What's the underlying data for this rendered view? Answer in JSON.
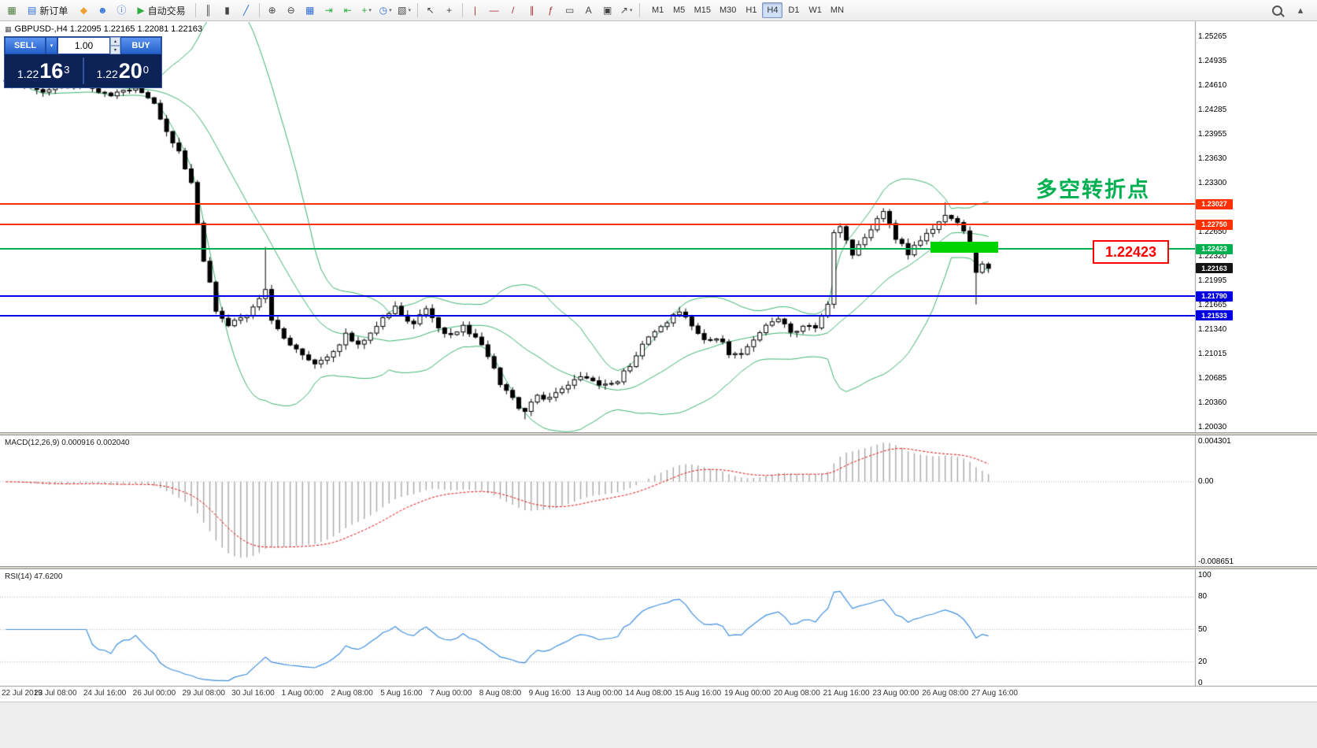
{
  "toolbar": {
    "caret_glyph": "▾",
    "items": [
      {
        "type": "icon",
        "name": "new-chart-button",
        "glyph": "▦",
        "color": "#4a7a3a"
      },
      {
        "type": "text",
        "name": "new-order-button",
        "label": "新订单",
        "glyph": "▤",
        "color": "#2b6cd9"
      },
      {
        "type": "icon",
        "name": "favorites-button",
        "glyph": "◆",
        "color": "#f0a030"
      },
      {
        "type": "icon",
        "name": "profile-button",
        "glyph": "☻",
        "color": "#3a78d8"
      },
      {
        "type": "icon",
        "name": "community-info-button",
        "glyph": "ⓘ",
        "color": "#3a78d8"
      },
      {
        "type": "text",
        "name": "autotrading-button",
        "label": "自动交易",
        "glyph": "▶",
        "color": "#2eae3e"
      },
      {
        "type": "sep"
      },
      {
        "type": "icon",
        "name": "bar-chart-button",
        "glyph": "║",
        "color": "#444"
      },
      {
        "type": "icon",
        "name": "candlestick-chart-button",
        "glyph": "▮",
        "color": "#444"
      },
      {
        "type": "icon",
        "name": "line-chart-button",
        "glyph": "╱",
        "color": "#2b6cd9"
      },
      {
        "type": "sep"
      },
      {
        "type": "icon",
        "name": "zoom-in-button",
        "glyph": "⊕",
        "color": "#444"
      },
      {
        "type": "icon",
        "name": "zoom-out-button",
        "glyph": "⊖",
        "color": "#444"
      },
      {
        "type": "icon",
        "name": "tile-windows-button",
        "glyph": "▦",
        "color": "#2b6cd9"
      },
      {
        "type": "icon",
        "name": "auto-scroll-button",
        "glyph": "⇥",
        "color": "#2eae3e"
      },
      {
        "type": "icon",
        "name": "chart-shift-button",
        "glyph": "⇤",
        "color": "#2eae3e"
      },
      {
        "type": "icon",
        "name": "indicators-button",
        "glyph": "+",
        "color": "#2eae3e",
        "dropdown": true
      },
      {
        "type": "icon",
        "name": "periods-button",
        "glyph": "◷",
        "color": "#2b6cd9",
        "dropdown": true
      },
      {
        "type": "icon",
        "name": "templates-button",
        "glyph": "▧",
        "color": "#444",
        "dropdown": true
      },
      {
        "type": "sep"
      },
      {
        "type": "icon",
        "name": "cursor-button",
        "glyph": "↖",
        "color": "#444"
      },
      {
        "type": "icon",
        "name": "crosshair-button",
        "glyph": "+",
        "color": "#444"
      },
      {
        "type": "sep"
      },
      {
        "type": "icon",
        "name": "vertical-line-button",
        "glyph": "|",
        "color": "#b03030"
      },
      {
        "type": "icon",
        "name": "horizontal-line-button",
        "glyph": "—",
        "color": "#b03030"
      },
      {
        "type": "icon",
        "name": "trendline-button",
        "glyph": "/",
        "color": "#b03030"
      },
      {
        "type": "icon",
        "name": "channel-button",
        "glyph": "∥",
        "color": "#b03030"
      },
      {
        "type": "icon",
        "name": "fibonacci-button",
        "glyph": "ƒ",
        "color": "#b03030"
      },
      {
        "type": "icon",
        "name": "shapes-button",
        "glyph": "▭",
        "color": "#444"
      },
      {
        "type": "icon",
        "name": "text-button",
        "glyph": "A",
        "color": "#444"
      },
      {
        "type": "icon",
        "name": "label-button",
        "glyph": "▣",
        "color": "#444"
      },
      {
        "type": "icon",
        "name": "arrows-button",
        "glyph": "↗",
        "color": "#444",
        "dropdown": true
      },
      {
        "type": "sep"
      }
    ],
    "timeframes": [
      "M1",
      "M5",
      "M15",
      "M30",
      "H1",
      "H4",
      "D1",
      "W1",
      "MN"
    ],
    "active_timeframe": "H4",
    "right_items": [
      {
        "type": "lens",
        "name": "search-button"
      },
      {
        "type": "icon",
        "name": "collapse-toolbar-button",
        "glyph": "▴",
        "color": "#555"
      }
    ]
  },
  "symbol_header": {
    "icon": "▦",
    "text": "GBPUSD-,H4  1.22095 1.22165 1.22081 1.22163"
  },
  "trade_panel": {
    "sell_label": "SELL",
    "buy_label": "BUY",
    "volume": "1.00",
    "caret": "▾",
    "spin_up": "▴",
    "spin_down": "▾",
    "sell_price": {
      "head": "1.22",
      "main": "16",
      "sup": "3"
    },
    "buy_price": {
      "head": "1.22",
      "main": "20",
      "sup": "0"
    }
  },
  "annotations": {
    "turning_point": "多空转折点",
    "price_callout": "1.22423"
  },
  "price_axis": {
    "labels": [
      "1.25265",
      "1.24935",
      "1.24610",
      "1.24285",
      "1.23955",
      "1.23630",
      "1.23300",
      "1.22975",
      "1.22650",
      "1.22320",
      "1.21995",
      "1.21665",
      "1.21340",
      "1.21015",
      "1.20685",
      "1.20360",
      "1.20030"
    ],
    "tags": [
      {
        "text": "1.23027",
        "bg": "#ff3000"
      },
      {
        "text": "1.22750",
        "bg": "#ff3000"
      },
      {
        "text": "1.22423",
        "bg": "#00b050"
      },
      {
        "text": "1.22163",
        "bg": "#141414"
      },
      {
        "text": "1.21790",
        "bg": "#0000e0"
      },
      {
        "text": "1.21533",
        "bg": "#0000e0"
      }
    ]
  },
  "macd": {
    "title": "MACD(12,26,9) 0.000916 0.002040",
    "axis_labels": [
      "0.004301",
      "0.00",
      "-0.008651"
    ]
  },
  "rsi": {
    "title": "RSI(14) 47.6200",
    "axis_labels": [
      "100",
      "80",
      "50",
      "20",
      "0"
    ]
  },
  "time_axis": {
    "labels": [
      "22 Jul 2019",
      "23 Jul 08:00",
      "24 Jul 16:00",
      "26 Jul 00:00",
      "29 Jul 08:00",
      "30 Jul 16:00",
      "1 Aug 00:00",
      "2 Aug 08:00",
      "5 Aug 16:00",
      "7 Aug 00:00",
      "8 Aug 08:00",
      "9 Aug 16:00",
      "13 Aug 00:00",
      "14 Aug 08:00",
      "15 Aug 16:00",
      "19 Aug 00:00",
      "20 Aug 08:00",
      "21 Aug 16:00",
      "23 Aug 00:00",
      "26 Aug 08:00",
      "27 Aug 16:00"
    ]
  },
  "chart_data": {
    "type": "candlestick",
    "symbol": "GBPUSD",
    "timeframe": "H4",
    "current_ohlc": {
      "open": 1.22095,
      "high": 1.22165,
      "low": 1.22081,
      "close": 1.22163
    },
    "bid": 1.22163,
    "ask": 1.222,
    "y_axis_range": [
      1.2003,
      1.25265
    ],
    "macd_axis_range": [
      -0.008651,
      0.004301
    ],
    "macd_values": {
      "macd": 0.000916,
      "signal": 0.00204
    },
    "rsi_value": 47.62,
    "levels": [
      {
        "price": 1.23027,
        "color": "#ff3000",
        "type": "resistance"
      },
      {
        "price": 1.2275,
        "color": "#ff3000",
        "type": "resistance"
      },
      {
        "price": 1.22423,
        "color": "#00b050",
        "type": "pivot"
      },
      {
        "price": 1.2179,
        "color": "#0000e0",
        "type": "support"
      },
      {
        "price": 1.21533,
        "color": "#0000e0",
        "type": "support"
      }
    ],
    "supply_zone": {
      "from_index": 150,
      "to_index": 161,
      "price_top": 1.2252,
      "price_bottom": 1.2237,
      "color": "#00d300"
    },
    "candle_count": 160,
    "price_path_anchors": [
      [
        0,
        1.2465
      ],
      [
        7,
        1.2454
      ],
      [
        12,
        1.2462
      ],
      [
        17,
        1.2449
      ],
      [
        21,
        1.2456
      ],
      [
        24,
        1.2438
      ],
      [
        26,
        1.2401
      ],
      [
        28,
        1.2372
      ],
      [
        30,
        1.2333
      ],
      [
        31,
        1.228
      ],
      [
        32,
        1.2225
      ],
      [
        33,
        1.2195
      ],
      [
        34,
        1.216
      ],
      [
        36,
        1.2143
      ],
      [
        38,
        1.2148
      ],
      [
        40,
        1.2164
      ],
      [
        42,
        1.2185
      ],
      [
        43,
        1.215
      ],
      [
        45,
        1.212
      ],
      [
        47,
        1.2106
      ],
      [
        50,
        1.209
      ],
      [
        52,
        1.2096
      ],
      [
        55,
        1.2127
      ],
      [
        57,
        1.2112
      ],
      [
        59,
        1.2133
      ],
      [
        63,
        1.2164
      ],
      [
        64,
        1.2154
      ],
      [
        66,
        1.2143
      ],
      [
        68,
        1.2159
      ],
      [
        70,
        1.2138
      ],
      [
        72,
        1.2127
      ],
      [
        74,
        1.214
      ],
      [
        76,
        1.2122
      ],
      [
        78,
        1.21
      ],
      [
        80,
        1.2062
      ],
      [
        82,
        1.204
      ],
      [
        84,
        1.2022
      ],
      [
        86,
        1.2046
      ],
      [
        88,
        1.2043
      ],
      [
        91,
        1.2059
      ],
      [
        93,
        1.2069
      ],
      [
        96,
        1.206
      ],
      [
        99,
        1.2066
      ],
      [
        101,
        1.2085
      ],
      [
        103,
        1.2118
      ],
      [
        105,
        1.2133
      ],
      [
        107,
        1.2145
      ],
      [
        109,
        1.2159
      ],
      [
        111,
        1.2137
      ],
      [
        113,
        1.212
      ],
      [
        115,
        1.2125
      ],
      [
        117,
        1.2104
      ],
      [
        119,
        1.2098
      ],
      [
        122,
        1.2133
      ],
      [
        125,
        1.2152
      ],
      [
        127,
        1.213
      ],
      [
        129,
        1.214
      ],
      [
        131,
        1.2138
      ],
      [
        133,
        1.2165
      ],
      [
        134,
        1.2262
      ],
      [
        135,
        1.227
      ],
      [
        137,
        1.2235
      ],
      [
        139,
        1.2255
      ],
      [
        141,
        1.2282
      ],
      [
        142,
        1.229
      ],
      [
        144,
        1.2258
      ],
      [
        146,
        1.2235
      ],
      [
        148,
        1.2255
      ],
      [
        150,
        1.2272
      ],
      [
        152,
        1.229
      ],
      [
        153,
        1.2283
      ],
      [
        155,
        1.227
      ],
      [
        156,
        1.2245
      ],
      [
        157,
        1.2208
      ],
      [
        158,
        1.2222
      ],
      [
        159,
        1.22163
      ]
    ],
    "wick_overrides": {
      "42": {
        "high": 1.2245
      },
      "84": {
        "low": 1.2014
      },
      "152": {
        "high": 1.2305
      },
      "157": {
        "low": 1.2168
      }
    },
    "indicators": [
      {
        "name": "Bollinger Bands",
        "period": 20,
        "deviation": 2
      },
      {
        "name": "MACD",
        "fast": 12,
        "slow": 26,
        "signal": 9
      },
      {
        "name": "RSI",
        "period": 14
      }
    ],
    "colors": {
      "bands": "#3cb371",
      "rsi_line": "#3f8fde",
      "macd_histogram": "#a8a8a8",
      "macd_signal": "#e01010",
      "candle_up": "#ffffff",
      "candle_down": "#000000",
      "candle_outline": "#000000"
    }
  }
}
